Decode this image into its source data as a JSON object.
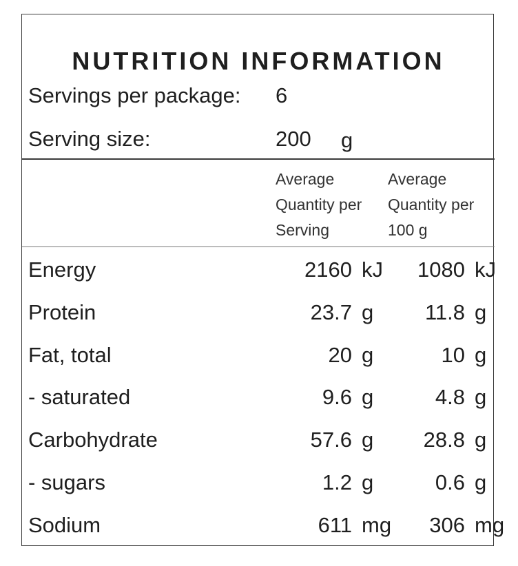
{
  "panel": {
    "title": "NUTRITION INFORMATION",
    "servings_label": "Servings per package:",
    "servings_value": "6",
    "size_label": "Serving size:",
    "size_value": "200",
    "size_unit": "g"
  },
  "columns": {
    "per_serving": [
      "Average",
      "Quantity per",
      "Serving"
    ],
    "per_100": [
      "Average",
      "Quantity per",
      "100 g"
    ]
  },
  "rows": [
    {
      "name": "Energy",
      "serving": "2160",
      "serving_unit": "kJ",
      "per100": "1080",
      "per100_unit": "kJ"
    },
    {
      "name": "Protein",
      "serving": "23.7",
      "serving_unit": "g",
      "per100": "11.8",
      "per100_unit": "g"
    },
    {
      "name": "Fat, total",
      "serving": "20",
      "serving_unit": "g",
      "per100": "10",
      "per100_unit": "g"
    },
    {
      "name": "- saturated",
      "serving": "9.6",
      "serving_unit": "g",
      "per100": "4.8",
      "per100_unit": "g"
    },
    {
      "name": "Carbohydrate",
      "serving": "57.6",
      "serving_unit": "g",
      "per100": "28.8",
      "per100_unit": "g"
    },
    {
      "name": "- sugars",
      "serving": "1.2",
      "serving_unit": "g",
      "per100": "0.6",
      "per100_unit": "g"
    },
    {
      "name": "Sodium",
      "serving": "611",
      "serving_unit": "mg",
      "per100": "306",
      "per100_unit": "mg"
    }
  ]
}
